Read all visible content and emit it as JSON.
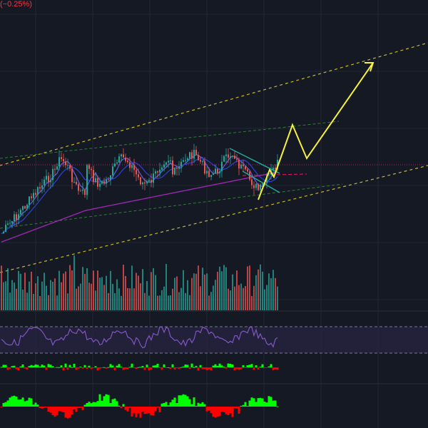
{
  "header": {
    "change_text": "(−0.25%)",
    "change_color": "#f23645"
  },
  "colors": {
    "background": "#151924",
    "grid": "#222736",
    "candle_up": "#26a69a",
    "candle_down": "#ef5350",
    "ma_fast": "#5b5bd6",
    "ma_mid": "#2a3fcc",
    "ma_slow": "#9c27b0",
    "band_line": "#2e7d32",
    "channel_line": "#c9b827",
    "projection": "#f7f13b",
    "price_line": "#c2185b",
    "rsi_line": "#7e57c2",
    "rsi_band_fill": "#2a2344",
    "osc_up": "#00ff00",
    "osc_down": "#ff0000"
  },
  "chart_data": [
    {
      "type": "line",
      "panel": "price",
      "title": "",
      "projection_path": [
        [
          0,
          0.3
        ],
        [
          1,
          0.68
        ],
        [
          2,
          0.36
        ],
        [
          3,
          1.0
        ]
      ],
      "projection_arrow": true,
      "price_line_dotted": true
    },
    {
      "type": "bar",
      "panel": "volume",
      "title": ""
    },
    {
      "type": "line",
      "panel": "rsi",
      "title": "",
      "levels": [
        "upper",
        "lower"
      ]
    },
    {
      "type": "bar",
      "panel": "oscillator",
      "title": ""
    }
  ]
}
